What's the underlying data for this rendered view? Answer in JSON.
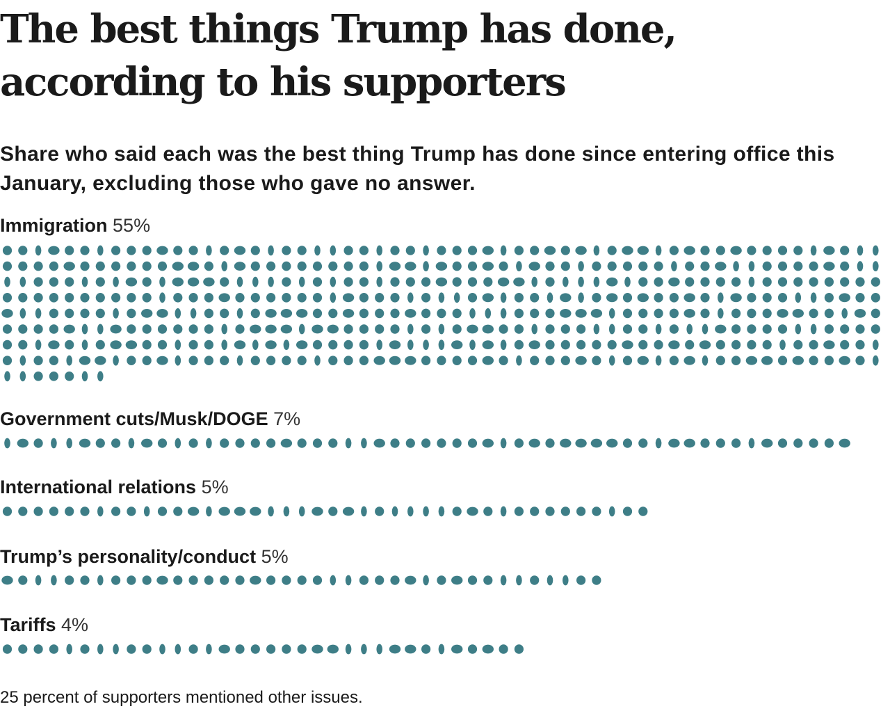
{
  "title": "The best things Trump has done, according to his supporters",
  "subtitle": "Share who said each was the best thing Trump has done since entering office this January, excluding those who gave no answer.",
  "footnote": "25 percent of supporters mentioned other issues.",
  "colors": {
    "dot": "#3e7e87",
    "text": "#1a1a1a"
  },
  "chart_data": {
    "type": "dot-matrix",
    "title": "The best things Trump has done, according to his supporters",
    "subtitle": "Share who said each was the best thing Trump has done since entering office this January, excluding those who gave no answer.",
    "unit": "%",
    "categories": [
      {
        "label": "Immigration",
        "value_label": "55%",
        "value": 55,
        "dots": 463
      },
      {
        "label": "Government cuts/Musk/DOGE",
        "value_label": "7%",
        "value": 7,
        "dots": 55
      },
      {
        "label": "International relations",
        "value_label": "5%",
        "value": 5,
        "dots": 42
      },
      {
        "label": "Trump’s personality/conduct",
        "value_label": "5%",
        "value": 5,
        "dots": 39
      },
      {
        "label": "Tariffs",
        "value_label": "4%",
        "value": 4,
        "dots": 34
      }
    ]
  }
}
